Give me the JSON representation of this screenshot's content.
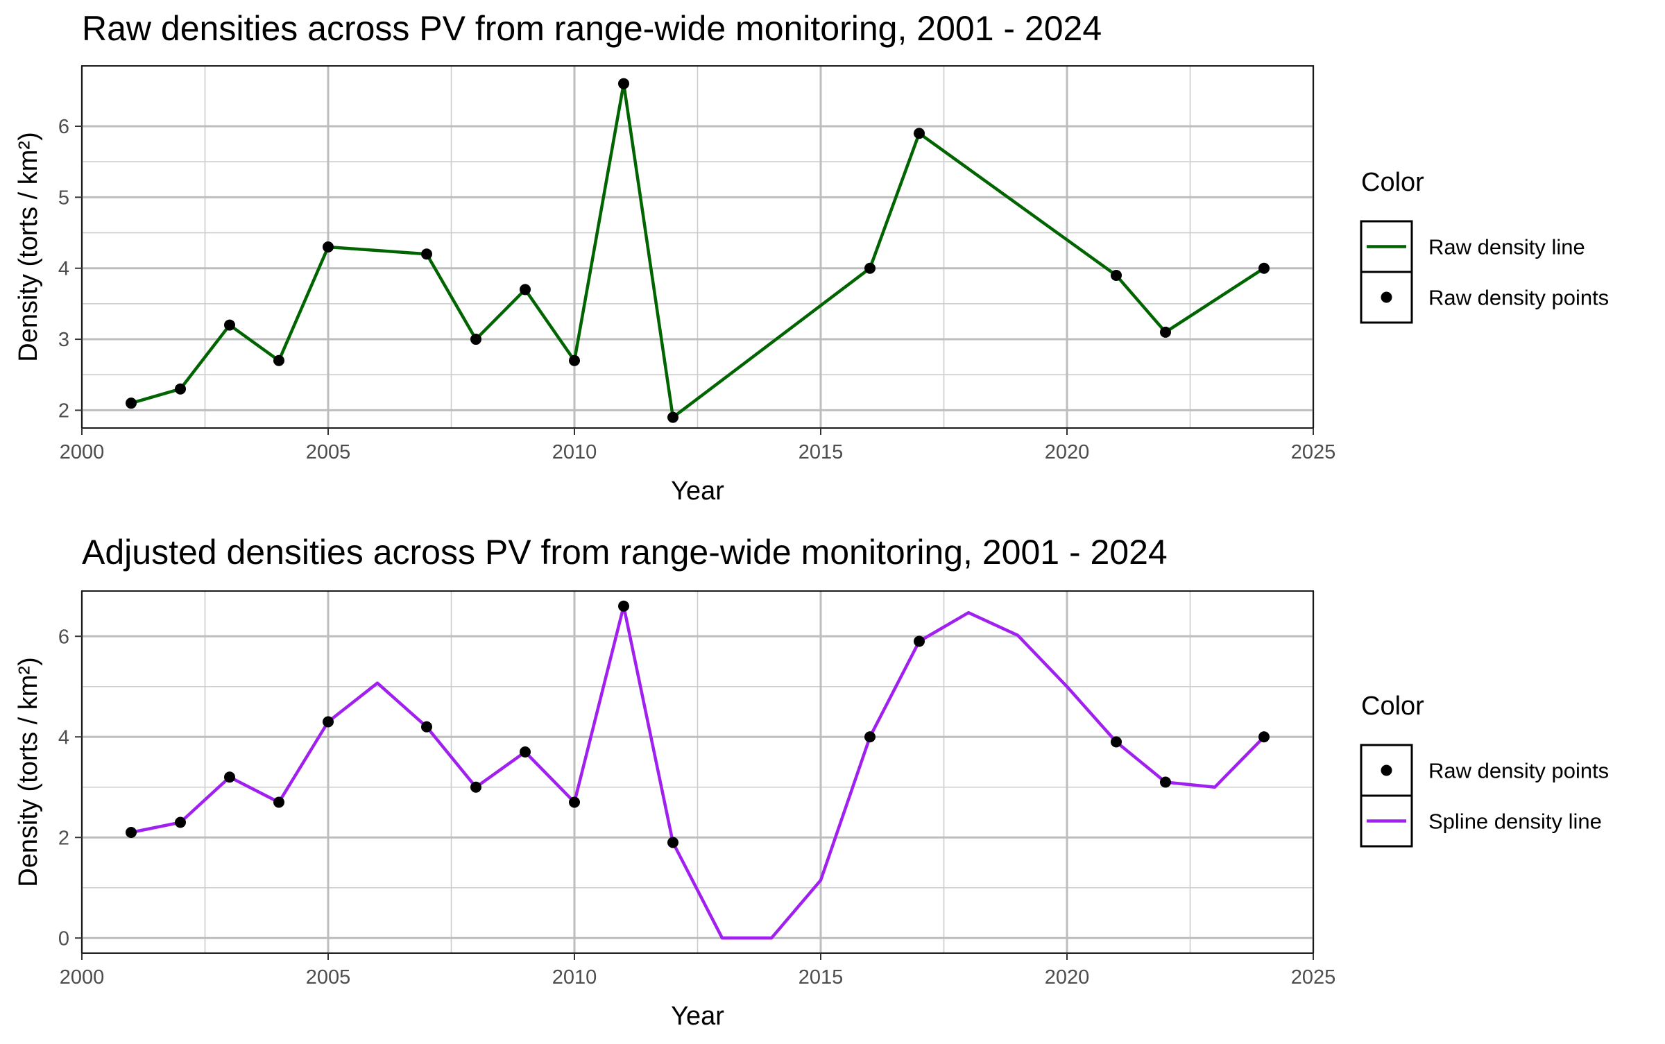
{
  "chart_data": [
    {
      "type": "line",
      "title": "Raw densities across PV from range-wide monitoring, 2001 - 2024",
      "xlabel": "Year",
      "ylabel": "Density (torts / km²)",
      "xlim": [
        2000,
        2025
      ],
      "ylim": [
        1.75,
        6.85
      ],
      "xticks": [
        2000,
        2005,
        2010,
        2015,
        2020,
        2025
      ],
      "yticks": [
        2,
        3,
        4,
        5,
        6
      ],
      "grid": true,
      "legend": {
        "title": "Color",
        "position": "right",
        "entries": [
          {
            "label": "Raw density line",
            "kind": "line",
            "color": "#006400"
          },
          {
            "label": "Raw density points",
            "kind": "point",
            "color": "#000000"
          }
        ]
      },
      "series": [
        {
          "name": "Raw density line",
          "kind": "line",
          "color": "#006400",
          "x": [
            2001,
            2002,
            2003,
            2004,
            2005,
            2007,
            2008,
            2009,
            2010,
            2011,
            2012,
            2016,
            2017,
            2021,
            2022,
            2024
          ],
          "y": [
            2.1,
            2.3,
            3.2,
            2.7,
            4.3,
            4.2,
            3.0,
            3.7,
            2.7,
            6.6,
            1.9,
            4.0,
            5.9,
            3.9,
            3.1,
            4.0
          ]
        },
        {
          "name": "Raw density points",
          "kind": "points",
          "color": "#000000",
          "x": [
            2001,
            2002,
            2003,
            2004,
            2005,
            2007,
            2008,
            2009,
            2010,
            2011,
            2012,
            2016,
            2017,
            2021,
            2022,
            2024
          ],
          "y": [
            2.1,
            2.3,
            3.2,
            2.7,
            4.3,
            4.2,
            3.0,
            3.7,
            2.7,
            6.6,
            1.9,
            4.0,
            5.9,
            3.9,
            3.1,
            4.0
          ]
        }
      ]
    },
    {
      "type": "line",
      "title": "Adjusted densities across PV from range-wide monitoring, 2001 - 2024",
      "xlabel": "Year",
      "ylabel": "Density (torts / km²)",
      "xlim": [
        2000,
        2025
      ],
      "ylim": [
        -0.3,
        6.9
      ],
      "xticks": [
        2000,
        2005,
        2010,
        2015,
        2020,
        2025
      ],
      "yticks": [
        0,
        2,
        4,
        6
      ],
      "grid": true,
      "legend": {
        "title": "Color",
        "position": "right",
        "entries": [
          {
            "label": "Raw density points",
            "kind": "point",
            "color": "#000000"
          },
          {
            "label": "Spline density line",
            "kind": "line",
            "color": "#A020F0"
          }
        ]
      },
      "series": [
        {
          "name": "Spline density line",
          "kind": "line",
          "color": "#A020F0",
          "x": [
            2001,
            2002,
            2003,
            2004,
            2005,
            2006,
            2007,
            2008,
            2009,
            2010,
            2011,
            2012,
            2013,
            2014,
            2015,
            2016,
            2017,
            2018,
            2019,
            2020,
            2021,
            2022,
            2023,
            2024
          ],
          "y": [
            2.1,
            2.3,
            3.2,
            2.7,
            4.3,
            5.07,
            4.2,
            3.0,
            3.7,
            2.7,
            6.6,
            1.9,
            0.0,
            0.0,
            1.15,
            4.0,
            5.9,
            6.47,
            6.02,
            5.0,
            3.9,
            3.1,
            3.0,
            4.0
          ]
        },
        {
          "name": "Raw density points",
          "kind": "points",
          "color": "#000000",
          "x": [
            2001,
            2002,
            2003,
            2004,
            2005,
            2007,
            2008,
            2009,
            2010,
            2011,
            2012,
            2016,
            2017,
            2021,
            2022,
            2024
          ],
          "y": [
            2.1,
            2.3,
            3.2,
            2.7,
            4.3,
            4.2,
            3.0,
            3.7,
            2.7,
            6.6,
            1.9,
            4.0,
            5.9,
            3.9,
            3.1,
            4.0
          ]
        }
      ]
    }
  ]
}
